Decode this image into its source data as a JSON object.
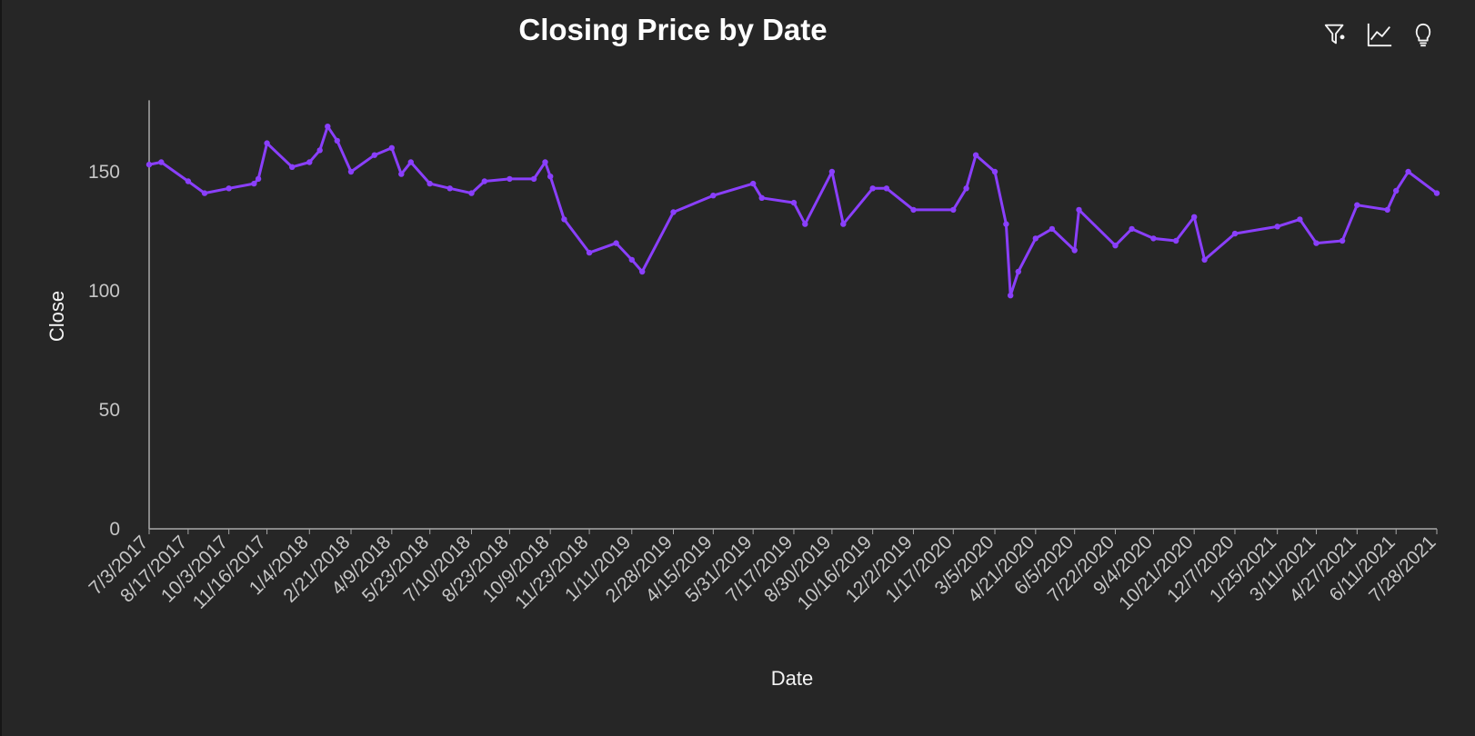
{
  "chart_data": {
    "type": "line",
    "title": "Closing Price by Date",
    "xlabel": "Date",
    "ylabel": "Close",
    "ylim": [
      0,
      180
    ],
    "yticks": [
      0,
      50,
      100,
      150
    ],
    "series_color": "#8a3ffc",
    "x_tick_labels": [
      "7/3/2017",
      "8/17/2017",
      "10/3/2017",
      "11/16/2017",
      "1/4/2018",
      "2/21/2018",
      "4/9/2018",
      "5/23/2018",
      "7/10/2018",
      "8/23/2018",
      "10/9/2018",
      "11/23/2018",
      "1/11/2019",
      "2/28/2019",
      "4/15/2019",
      "5/31/2019",
      "7/17/2019",
      "8/30/2019",
      "10/16/2019",
      "12/2/2019",
      "1/17/2020",
      "3/5/2020",
      "4/21/2020",
      "6/5/2020",
      "7/22/2020",
      "9/4/2020",
      "10/21/2020",
      "12/7/2020",
      "1/25/2021",
      "3/11/2021",
      "4/27/2021",
      "6/11/2021",
      "7/28/2021"
    ],
    "series": [
      {
        "x": [
          "7/3/2017",
          "7/17/2017",
          "8/17/2017",
          "9/5/2017",
          "10/3/2017",
          "11/1/2017",
          "11/6/2017",
          "11/16/2017",
          "12/15/2017",
          "1/4/2018",
          "1/16/2018",
          "1/25/2018",
          "2/5/2018",
          "2/21/2018",
          "3/20/2018",
          "4/9/2018",
          "4/20/2018",
          "5/1/2018",
          "5/23/2018",
          "6/15/2018",
          "7/10/2018",
          "7/25/2018",
          "8/23/2018",
          "9/20/2018",
          "10/3/2018",
          "10/9/2018",
          "10/25/2018",
          "11/23/2018",
          "12/24/2018",
          "1/11/2019",
          "1/23/2019",
          "2/28/2019",
          "4/15/2019",
          "5/31/2019",
          "6/10/2019",
          "7/17/2019",
          "7/30/2019",
          "8/30/2019",
          "9/12/2019",
          "10/16/2019",
          "11/1/2019",
          "12/2/2019",
          "1/17/2020",
          "2/1/2020",
          "2/12/2020",
          "3/5/2020",
          "3/18/2020",
          "3/23/2020",
          "4/1/2020",
          "4/21/2020",
          "5/10/2020",
          "6/5/2020",
          "6/10/2020",
          "7/22/2020",
          "8/10/2020",
          "9/4/2020",
          "9/30/2020",
          "10/21/2020",
          "11/2/2020",
          "12/7/2020",
          "1/25/2021",
          "2/20/2021",
          "3/11/2021",
          "4/10/2021",
          "4/27/2021",
          "6/1/2021",
          "6/11/2021",
          "6/25/2021",
          "7/28/2021"
        ],
        "y": [
          153,
          154,
          146,
          141,
          143,
          145,
          147,
          162,
          152,
          154,
          159,
          169,
          163,
          150,
          157,
          160,
          149,
          154,
          145,
          143,
          141,
          146,
          147,
          147,
          154,
          148,
          130,
          116,
          120,
          113,
          108,
          133,
          140,
          145,
          139,
          137,
          128,
          150,
          128,
          143,
          143,
          134,
          134,
          143,
          157,
          150,
          128,
          98,
          108,
          122,
          126,
          117,
          134,
          119,
          126,
          122,
          121,
          131,
          113,
          124,
          127,
          130,
          120,
          121,
          136,
          134,
          142,
          150,
          141
        ]
      }
    ]
  }
}
